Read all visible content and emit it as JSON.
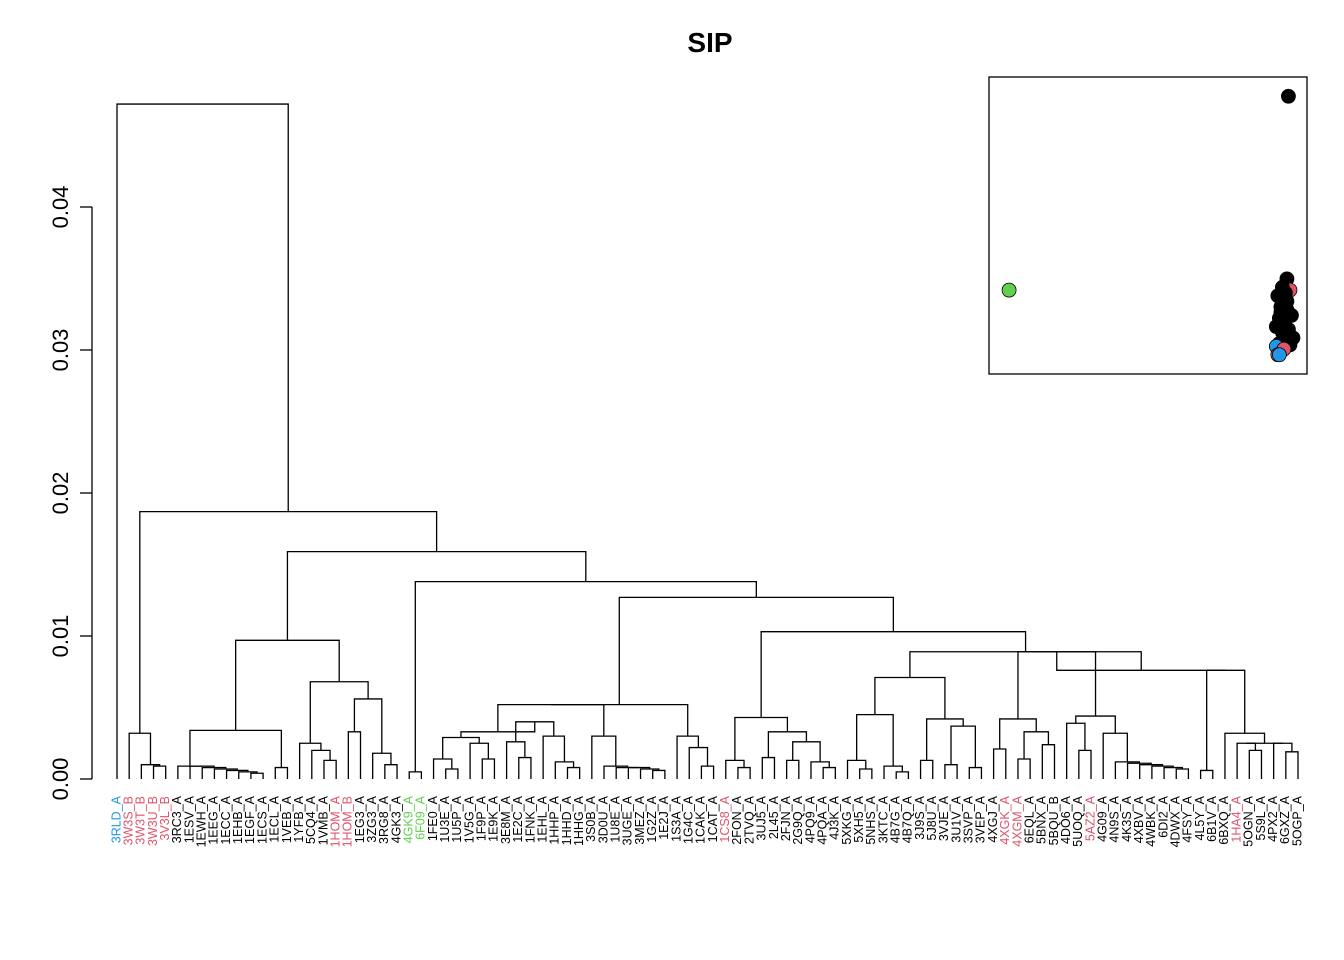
{
  "chart_data": [
    {
      "type": "dendrogram",
      "title": "SIP",
      "xlabel": "",
      "ylabel": "",
      "ylim": [
        0,
        0.048
      ],
      "yticks": [
        {
          "value": 0.0,
          "label": "0.00"
        },
        {
          "value": 0.01,
          "label": "0.01"
        },
        {
          "value": 0.02,
          "label": "0.02"
        },
        {
          "value": 0.03,
          "label": "0.03"
        },
        {
          "value": 0.04,
          "label": "0.04"
        }
      ],
      "colors": {
        "black": "#000000",
        "red": "#DF536B",
        "blue": "#2297E6",
        "green": "#61D04F"
      },
      "leaves": [
        {
          "label": "3RLD_A",
          "color": "blue"
        },
        {
          "label": "3W3S_B",
          "color": "red"
        },
        {
          "label": "3W3T_B",
          "color": "red"
        },
        {
          "label": "3W3U_B",
          "color": "red"
        },
        {
          "label": "3V3L_B",
          "color": "red"
        },
        {
          "label": "3RC3_A",
          "color": "black"
        },
        {
          "label": "1ESV_A",
          "color": "black"
        },
        {
          "label": "1EWH_A",
          "color": "black"
        },
        {
          "label": "1EEG_A",
          "color": "black"
        },
        {
          "label": "1ECC_A",
          "color": "black"
        },
        {
          "label": "1EHB_A",
          "color": "black"
        },
        {
          "label": "1EGF_A",
          "color": "black"
        },
        {
          "label": "1ECS_A",
          "color": "black"
        },
        {
          "label": "1ECL_A",
          "color": "black"
        },
        {
          "label": "1VEB_A",
          "color": "black"
        },
        {
          "label": "1YFB_A",
          "color": "black"
        },
        {
          "label": "5CQ4_A",
          "color": "black"
        },
        {
          "label": "1VMB_A",
          "color": "black"
        },
        {
          "label": "1HOM_A",
          "color": "red"
        },
        {
          "label": "1HOM_B",
          "color": "red"
        },
        {
          "label": "1EG3_A",
          "color": "black"
        },
        {
          "label": "3ZG3_A",
          "color": "black"
        },
        {
          "label": "3RG8_A",
          "color": "black"
        },
        {
          "label": "4GK3_A",
          "color": "black"
        },
        {
          "label": "4GK9_A",
          "color": "green"
        },
        {
          "label": "6F09_A",
          "color": "green"
        },
        {
          "label": "1FE0_A",
          "color": "black"
        },
        {
          "label": "1U3E_A",
          "color": "black"
        },
        {
          "label": "1U5P_A",
          "color": "black"
        },
        {
          "label": "1V5G_A",
          "color": "black"
        },
        {
          "label": "1F9P_A",
          "color": "black"
        },
        {
          "label": "1E9K_A",
          "color": "black"
        },
        {
          "label": "3E8M_A",
          "color": "black"
        },
        {
          "label": "1E2C_A",
          "color": "black"
        },
        {
          "label": "1FNK_A",
          "color": "black"
        },
        {
          "label": "1EHL_A",
          "color": "black"
        },
        {
          "label": "1HHP_A",
          "color": "black"
        },
        {
          "label": "1HHD_A",
          "color": "black"
        },
        {
          "label": "1HHG_A",
          "color": "black"
        },
        {
          "label": "3S0B_A",
          "color": "black"
        },
        {
          "label": "3D0U_A",
          "color": "black"
        },
        {
          "label": "1U8E_A",
          "color": "black"
        },
        {
          "label": "3UGE_A",
          "color": "black"
        },
        {
          "label": "3MEZ_A",
          "color": "black"
        },
        {
          "label": "1G2Z_A",
          "color": "black"
        },
        {
          "label": "1E2J_A",
          "color": "black"
        },
        {
          "label": "1S3A_A",
          "color": "black"
        },
        {
          "label": "1G4C_A",
          "color": "black"
        },
        {
          "label": "1CAK_A",
          "color": "black"
        },
        {
          "label": "1CAT_A",
          "color": "black"
        },
        {
          "label": "1CS8_A",
          "color": "red"
        },
        {
          "label": "2FON_A",
          "color": "black"
        },
        {
          "label": "2TVQ_A",
          "color": "black"
        },
        {
          "label": "3UJ5_A",
          "color": "black"
        },
        {
          "label": "2L45_A",
          "color": "black"
        },
        {
          "label": "2FJN_A",
          "color": "black"
        },
        {
          "label": "2G9Q_A",
          "color": "black"
        },
        {
          "label": "4PQ9_A",
          "color": "black"
        },
        {
          "label": "4PQA_A",
          "color": "black"
        },
        {
          "label": "4J3K_A",
          "color": "black"
        },
        {
          "label": "5XKG_A",
          "color": "black"
        },
        {
          "label": "5XH5_A",
          "color": "black"
        },
        {
          "label": "5NHS_A",
          "color": "black"
        },
        {
          "label": "3KTC_A",
          "color": "black"
        },
        {
          "label": "4B7G_A",
          "color": "black"
        },
        {
          "label": "4B7Q_A",
          "color": "black"
        },
        {
          "label": "3J9S_A",
          "color": "black"
        },
        {
          "label": "5J8U_A",
          "color": "black"
        },
        {
          "label": "3VJE_A",
          "color": "black"
        },
        {
          "label": "3U1V_A",
          "color": "black"
        },
        {
          "label": "3SVP_A",
          "color": "black"
        },
        {
          "label": "3VEP_A",
          "color": "black"
        },
        {
          "label": "4XGJ_A",
          "color": "black"
        },
        {
          "label": "4XGK_A",
          "color": "red"
        },
        {
          "label": "4XGM_A",
          "color": "red"
        },
        {
          "label": "6EQL_A",
          "color": "black"
        },
        {
          "label": "5BNX_A",
          "color": "black"
        },
        {
          "label": "5BQU_B",
          "color": "black"
        },
        {
          "label": "4DO6_A",
          "color": "black"
        },
        {
          "label": "5UOQ_A",
          "color": "black"
        },
        {
          "label": "5AZ2_A",
          "color": "red"
        },
        {
          "label": "4G09_A",
          "color": "black"
        },
        {
          "label": "4N9S_A",
          "color": "black"
        },
        {
          "label": "4K3S_A",
          "color": "black"
        },
        {
          "label": "4XBV_A",
          "color": "black"
        },
        {
          "label": "4WBK_A",
          "color": "black"
        },
        {
          "label": "6DI2_A",
          "color": "black"
        },
        {
          "label": "4DWX_A",
          "color": "black"
        },
        {
          "label": "4FSY_A",
          "color": "black"
        },
        {
          "label": "4L5Y_A",
          "color": "black"
        },
        {
          "label": "6B1V_A",
          "color": "black"
        },
        {
          "label": "6BXQ_A",
          "color": "black"
        },
        {
          "label": "1HA4_A",
          "color": "red"
        },
        {
          "label": "5OGN_A",
          "color": "black"
        },
        {
          "label": "5S9L_A",
          "color": "black"
        },
        {
          "label": "4PX2_A",
          "color": "black"
        },
        {
          "label": "6GXZ_A",
          "color": "black"
        },
        {
          "label": "5OGP_A",
          "color": "black"
        }
      ],
      "inset": {
        "type": "scatter",
        "xlim": [
          0,
          1
        ],
        "ylim": [
          0,
          1
        ],
        "points": [
          {
            "x": 0.04,
            "y": 0.27,
            "color": "green"
          },
          {
            "x": 0.965,
            "y": 0.96,
            "color": "black"
          },
          {
            "x": 0.96,
            "y": 0.31,
            "color": "black"
          },
          {
            "x": 0.97,
            "y": 0.27,
            "color": "red"
          },
          {
            "x": 0.955,
            "y": 0.26,
            "color": "black"
          },
          {
            "x": 0.945,
            "y": 0.28,
            "color": "black"
          },
          {
            "x": 0.93,
            "y": 0.25,
            "color": "black"
          },
          {
            "x": 0.95,
            "y": 0.23,
            "color": "black"
          },
          {
            "x": 0.94,
            "y": 0.21,
            "color": "black"
          },
          {
            "x": 0.96,
            "y": 0.2,
            "color": "black"
          },
          {
            "x": 0.975,
            "y": 0.18,
            "color": "black"
          },
          {
            "x": 0.935,
            "y": 0.17,
            "color": "black"
          },
          {
            "x": 0.95,
            "y": 0.16,
            "color": "black"
          },
          {
            "x": 0.925,
            "y": 0.14,
            "color": "black"
          },
          {
            "x": 0.965,
            "y": 0.13,
            "color": "black"
          },
          {
            "x": 0.945,
            "y": 0.12,
            "color": "black"
          },
          {
            "x": 0.98,
            "y": 0.1,
            "color": "black"
          },
          {
            "x": 0.955,
            "y": 0.09,
            "color": "black"
          },
          {
            "x": 0.935,
            "y": 0.08,
            "color": "black"
          },
          {
            "x": 0.97,
            "y": 0.075,
            "color": "black"
          },
          {
            "x": 0.925,
            "y": 0.07,
            "color": "blue"
          },
          {
            "x": 0.95,
            "y": 0.06,
            "color": "red"
          },
          {
            "x": 0.93,
            "y": 0.04,
            "color": "red"
          },
          {
            "x": 0.935,
            "y": 0.04,
            "color": "blue"
          },
          {
            "x": 0.96,
            "y": 0.23,
            "color": "black"
          },
          {
            "x": 0.94,
            "y": 0.19,
            "color": "black"
          }
        ]
      }
    }
  ]
}
